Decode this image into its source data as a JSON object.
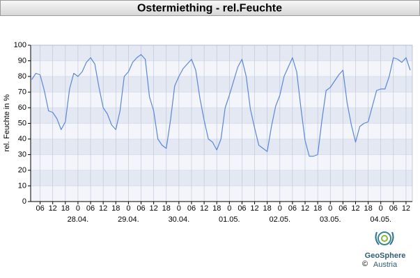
{
  "chart_data": {
    "type": "line",
    "title": "Ostermiething - rel.Feuchte",
    "y_label": "rel. Feuchte in %",
    "x": [
      2,
      4,
      6,
      8,
      10,
      12,
      14,
      16,
      18,
      20,
      22,
      24,
      26,
      28,
      30,
      32,
      34,
      36,
      38,
      40,
      42,
      44,
      46,
      48,
      50,
      52,
      54,
      56,
      58,
      60,
      62,
      64,
      66,
      68,
      70,
      72,
      74,
      76,
      78,
      80,
      82,
      84,
      86,
      88,
      90,
      92,
      94,
      96,
      98,
      100,
      102,
      104,
      106,
      108,
      110,
      112,
      114,
      116,
      118,
      120,
      122,
      124,
      126,
      128,
      130,
      132,
      134,
      136,
      138,
      140,
      142,
      144,
      146,
      148,
      150,
      152,
      154,
      156,
      158,
      160,
      162,
      164,
      166,
      168,
      170,
      172,
      174,
      176,
      178,
      180,
      182
    ],
    "values": [
      78,
      82,
      81,
      71,
      58,
      57,
      53,
      46,
      51,
      72,
      82,
      80,
      83,
      89,
      92,
      88,
      73,
      60,
      56,
      49,
      46,
      58,
      80,
      83,
      89,
      92,
      94,
      91,
      67,
      58,
      40,
      36,
      34,
      52,
      74,
      80,
      85,
      88,
      91,
      84,
      66,
      52,
      40,
      38,
      33,
      40,
      60,
      68,
      77,
      86,
      91,
      80,
      59,
      47,
      36,
      34,
      32,
      48,
      61,
      68,
      80,
      86,
      92,
      83,
      60,
      39,
      29,
      29,
      30,
      52,
      71,
      73,
      77,
      81,
      84,
      63,
      49,
      38,
      48,
      50,
      51,
      61,
      71,
      72,
      72,
      80,
      92,
      91,
      89,
      92,
      84
    ],
    "color": "#5b87d8",
    "xlim": [
      1.5,
      183
    ],
    "ylim": [
      0,
      100
    ],
    "yticks": [
      0,
      10,
      20,
      30,
      40,
      50,
      60,
      70,
      80,
      90,
      100
    ],
    "xticks": [
      {
        "value": 6,
        "label": "06"
      },
      {
        "value": 12,
        "label": "12"
      },
      {
        "value": 18,
        "label": "18"
      },
      {
        "value": 24,
        "label": "0"
      },
      {
        "value": 30,
        "label": "06"
      },
      {
        "value": 36,
        "label": "12"
      },
      {
        "value": 42,
        "label": "18"
      },
      {
        "value": 48,
        "label": "0"
      },
      {
        "value": 54,
        "label": "06"
      },
      {
        "value": 60,
        "label": "12"
      },
      {
        "value": 66,
        "label": "18"
      },
      {
        "value": 72,
        "label": "0"
      },
      {
        "value": 78,
        "label": "06"
      },
      {
        "value": 84,
        "label": "12"
      },
      {
        "value": 90,
        "label": "18"
      },
      {
        "value": 96,
        "label": "0"
      },
      {
        "value": 102,
        "label": "06"
      },
      {
        "value": 108,
        "label": "12"
      },
      {
        "value": 114,
        "label": "18"
      },
      {
        "value": 120,
        "label": "0"
      },
      {
        "value": 126,
        "label": "06"
      },
      {
        "value": 132,
        "label": "12"
      },
      {
        "value": 138,
        "label": "18"
      },
      {
        "value": 144,
        "label": "0"
      },
      {
        "value": 150,
        "label": "06"
      },
      {
        "value": 156,
        "label": "12"
      },
      {
        "value": 162,
        "label": "18"
      },
      {
        "value": 168,
        "label": "0"
      },
      {
        "value": 174,
        "label": "06"
      },
      {
        "value": 180,
        "label": "12"
      }
    ],
    "date_labels": [
      {
        "value": 24,
        "label": "28.04."
      },
      {
        "value": 48,
        "label": "29.04."
      },
      {
        "value": 72,
        "label": "30.04."
      },
      {
        "value": 96,
        "label": "01.05."
      },
      {
        "value": 120,
        "label": "02.05."
      },
      {
        "value": 144,
        "label": "03.05."
      },
      {
        "value": 168,
        "label": "04.05."
      }
    ],
    "grid": true,
    "bands": true,
    "logo": {
      "name": "GeoSphere",
      "country": "Austria",
      "copyright": "©"
    }
  }
}
